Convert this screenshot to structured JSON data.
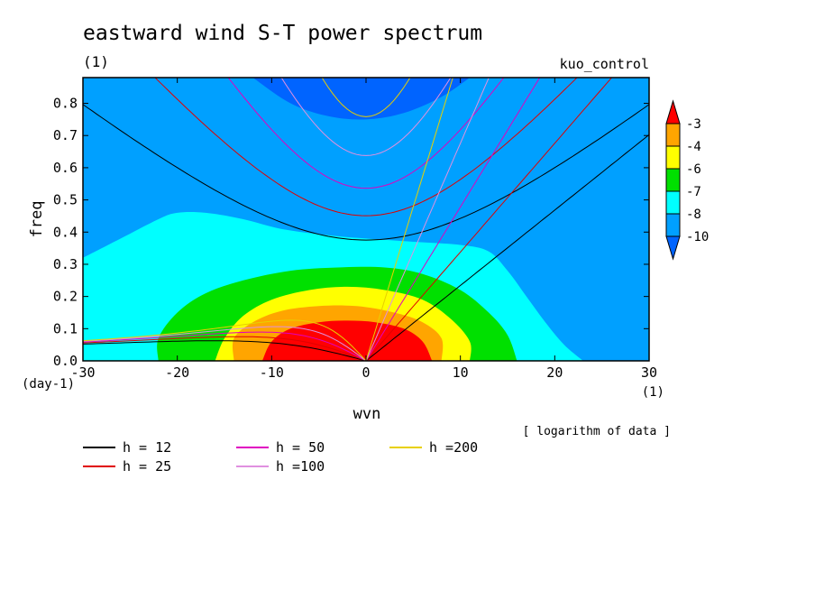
{
  "chart_data": {
    "type": "heatmap",
    "title": "eastward wind S-T power spectrum",
    "title_units": "(1)",
    "experiment": "kuo_control",
    "xlabel": "wvn",
    "ylabel": "freq",
    "x_units": "(1)",
    "y_units": "(day-1)",
    "note": "[ logarithm of data ]",
    "xlim": [
      -30,
      30
    ],
    "ylim": [
      0,
      0.88
    ],
    "x_ticks": [
      "-30",
      "-20",
      "-10",
      "0",
      "10",
      "20",
      "30"
    ],
    "y_ticks": [
      "0.0",
      "0.1",
      "0.2",
      "0.3",
      "0.4",
      "0.5",
      "0.6",
      "0.7",
      "0.8"
    ],
    "colorbar": {
      "levels": [
        "-3",
        "-4",
        "-6",
        "-7",
        "-8",
        "-10"
      ],
      "colors": [
        "#ff0000",
        "#ffa500",
        "#ffff00",
        "#00e000",
        "#00ffff",
        "#00a0ff",
        "#0064ff"
      ]
    },
    "contour_regions": [
      {
        "level": "below -10",
        "color": "#0064ff",
        "points": [
          [
            -12,
            0.88
          ],
          [
            -8,
            0.8
          ],
          [
            -4,
            0.76
          ],
          [
            0,
            0.75
          ],
          [
            4,
            0.77
          ],
          [
            8,
            0.82
          ],
          [
            11,
            0.88
          ]
        ]
      },
      {
        "level": "-10",
        "color": "#00a0ff",
        "points": [
          [
            -30,
            0.55
          ],
          [
            -25,
            0.59
          ],
          [
            -20,
            0.61
          ],
          [
            -15,
            0.62
          ],
          [
            -10,
            0.6
          ],
          [
            -5,
            0.58
          ],
          [
            0,
            0.57
          ],
          [
            5,
            0.58
          ],
          [
            10,
            0.61
          ],
          [
            14,
            0.63
          ],
          [
            17,
            0.61
          ],
          [
            19,
            0.55
          ],
          [
            20,
            0.47
          ],
          [
            21,
            0.38
          ],
          [
            23,
            0.32
          ],
          [
            26,
            0.29
          ],
          [
            30,
            0.28
          ]
        ]
      },
      {
        "level": "-8",
        "color": "#00ffff",
        "points": [
          [
            -30,
            0.32
          ],
          [
            -26,
            0.38
          ],
          [
            -22,
            0.44
          ],
          [
            -20,
            0.46
          ],
          [
            -17,
            0.46
          ],
          [
            -13,
            0.44
          ],
          [
            -9,
            0.41
          ],
          [
            -4,
            0.39
          ],
          [
            0,
            0.38
          ],
          [
            5,
            0.37
          ],
          [
            10,
            0.36
          ],
          [
            13,
            0.34
          ],
          [
            15,
            0.28
          ],
          [
            17,
            0.2
          ],
          [
            19,
            0.12
          ],
          [
            21,
            0.05
          ],
          [
            23,
            0
          ]
        ]
      },
      {
        "level": "-7",
        "color": "#00e000",
        "points": [
          [
            -22,
            0
          ],
          [
            -22,
            0.07
          ],
          [
            -20,
            0.15
          ],
          [
            -17,
            0.21
          ],
          [
            -13,
            0.25
          ],
          [
            -8,
            0.28
          ],
          [
            -3,
            0.29
          ],
          [
            2,
            0.29
          ],
          [
            6,
            0.27
          ],
          [
            10,
            0.22
          ],
          [
            13,
            0.15
          ],
          [
            15,
            0.08
          ],
          [
            16,
            0
          ]
        ]
      },
      {
        "level": "-6",
        "color": "#ffff00",
        "points": [
          [
            -16,
            0
          ],
          [
            -15,
            0.07
          ],
          [
            -13,
            0.14
          ],
          [
            -10,
            0.19
          ],
          [
            -6,
            0.22
          ],
          [
            -2,
            0.23
          ],
          [
            2,
            0.22
          ],
          [
            6,
            0.19
          ],
          [
            9,
            0.13
          ],
          [
            11,
            0.06
          ],
          [
            11,
            0
          ]
        ]
      },
      {
        "level": "-4",
        "color": "#ffa500",
        "points": [
          [
            -14,
            0
          ],
          [
            -14,
            0.07
          ],
          [
            -12,
            0.12
          ],
          [
            -9,
            0.155
          ],
          [
            -5,
            0.17
          ],
          [
            -1,
            0.17
          ],
          [
            3,
            0.15
          ],
          [
            6,
            0.12
          ],
          [
            8,
            0.07
          ],
          [
            8,
            0
          ]
        ]
      },
      {
        "level": "-3",
        "color": "#ff0000",
        "points": [
          [
            -11,
            0
          ],
          [
            -10,
            0.06
          ],
          [
            -8,
            0.1
          ],
          [
            -5,
            0.12
          ],
          [
            -2,
            0.125
          ],
          [
            1,
            0.12
          ],
          [
            4,
            0.1
          ],
          [
            6,
            0.06
          ],
          [
            7,
            0
          ]
        ]
      }
    ],
    "series": [
      {
        "name": "h = 12",
        "color": "#000000"
      },
      {
        "name": "h = 25",
        "color": "#e00000"
      },
      {
        "name": "h = 50",
        "color": "#e000c0"
      },
      {
        "name": "h =100",
        "color": "#e090e0"
      },
      {
        "name": "h =200",
        "color": "#e8d000"
      }
    ]
  }
}
